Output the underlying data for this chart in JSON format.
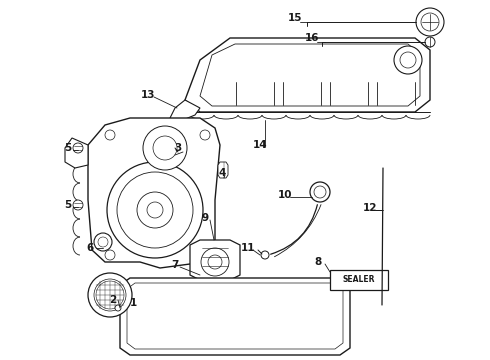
{
  "background_color": "#ffffff",
  "line_color": "#1a1a1a",
  "figure_width": 4.9,
  "figure_height": 3.6,
  "dpi": 100,
  "label_fontsize": 7.5,
  "label_positions": [
    [
      "1",
      133,
      303
    ],
    [
      "2",
      113,
      300
    ],
    [
      "3",
      178,
      148
    ],
    [
      "4",
      222,
      173
    ],
    [
      "5",
      68,
      148
    ],
    [
      "5",
      68,
      205
    ],
    [
      "6",
      90,
      248
    ],
    [
      "7",
      175,
      265
    ],
    [
      "8",
      318,
      262
    ],
    [
      "9",
      205,
      218
    ],
    [
      "10",
      285,
      195
    ],
    [
      "11",
      248,
      248
    ],
    [
      "12",
      370,
      208
    ],
    [
      "13",
      148,
      95
    ],
    [
      "14",
      260,
      145
    ],
    [
      "15",
      295,
      18
    ],
    [
      "16",
      312,
      38
    ]
  ]
}
